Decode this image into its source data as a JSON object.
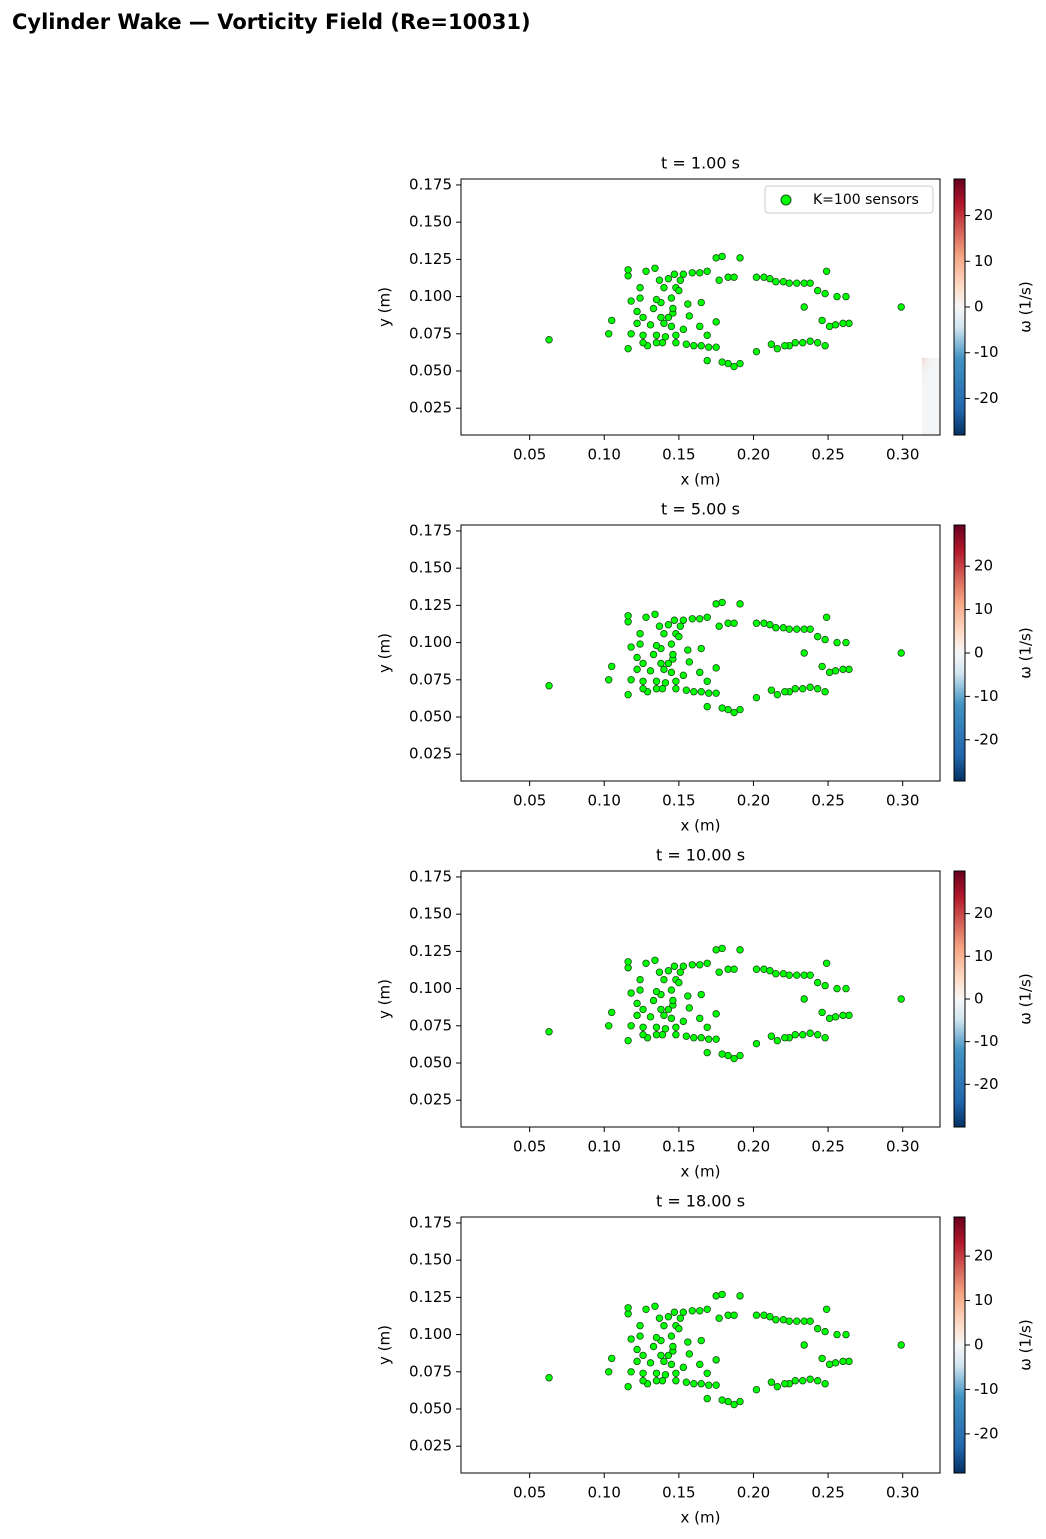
{
  "title": "Cylinder Wake — Vorticity Field (Re=10031)",
  "chart_data": [
    {
      "type": "heatmap",
      "title": "t = 1.00 s",
      "xlabel": "x (m)",
      "ylabel": "y (m)",
      "colorbar_label": "ω (1/s)",
      "cmap": "RdBu_r",
      "clim": [
        -28,
        28
      ],
      "cticks": [
        -20,
        -10,
        0,
        10,
        20
      ],
      "xlim": [
        0.004,
        0.325
      ],
      "ylim": [
        0.007,
        0.179
      ],
      "xticks": [
        0.05,
        {
          "value": 0.1,
          "label": "0.10"
        },
        0.15,
        {
          "value": 0.2,
          "label": "0.20"
        },
        0.25,
        {
          "value": 0.3,
          "label": "0.30"
        }
      ],
      "yticks": [
        0.025,
        {
          "value": 0.05,
          "label": "0.050"
        },
        0.075,
        {
          "value": 0.1,
          "label": "0.100"
        },
        0.125,
        {
          "value": 0.15,
          "label": "0.150"
        },
        0.175
      ],
      "legend": "upper right",
      "series": [
        {
          "name": "K=100 sensors",
          "color": "#00ff00",
          "x": [
            0.063,
            0.103,
            0.105,
            0.116,
            0.116,
            0.124,
            0.124,
            0.118,
            0.116,
            0.122,
            0.122,
            0.134,
            0.128,
            0.137,
            0.143,
            0.147,
            0.151,
            0.153,
            0.159,
            0.164,
            0.169,
            0.175,
            0.179,
            0.191,
            0.177,
            0.183,
            0.187,
            0.202,
            0.207,
            0.211,
            0.215,
            0.22,
            0.224,
            0.229,
            0.234,
            0.238,
            0.249,
            0.243,
            0.248,
            0.256,
            0.262,
            0.234,
            0.299,
            0.264,
            0.26,
            0.255,
            0.251,
            0.246,
            0.248,
            0.243,
            0.238,
            0.233,
            0.228,
            0.224,
            0.221,
            0.216,
            0.212,
            0.202,
            0.191,
            0.187,
            0.183,
            0.179,
            0.169,
            0.175,
            0.17,
            0.165,
            0.16,
            0.155,
            0.148,
            0.141,
            0.139,
            0.135,
            0.135,
            0.129,
            0.126,
            0.118,
            0.14,
            0.143,
            0.146,
            0.146,
            0.145,
            0.138,
            0.135,
            0.14,
            0.148,
            0.165,
            0.169,
            0.156,
            0.157,
            0.164,
            0.175,
            0.153,
            0.145,
            0.148,
            0.131,
            0.126,
            0.126,
            0.138,
            0.133,
            0.15
          ],
          "y": [
            0.071,
            0.075,
            0.084,
            0.114,
            0.118,
            0.106,
            0.099,
            0.097,
            0.065,
            0.082,
            0.09,
            0.119,
            0.117,
            0.111,
            0.112,
            0.115,
            0.111,
            0.115,
            0.116,
            0.116,
            0.117,
            0.126,
            0.127,
            0.126,
            0.111,
            0.113,
            0.113,
            0.113,
            0.113,
            0.112,
            0.11,
            0.11,
            0.109,
            0.109,
            0.109,
            0.109,
            0.117,
            0.104,
            0.102,
            0.1,
            0.1,
            0.093,
            0.093,
            0.082,
            0.082,
            0.081,
            0.08,
            0.084,
            0.067,
            0.069,
            0.07,
            0.069,
            0.069,
            0.067,
            0.067,
            0.065,
            0.068,
            0.063,
            0.055,
            0.053,
            0.055,
            0.056,
            0.057,
            0.066,
            0.066,
            0.067,
            0.067,
            0.068,
            0.069,
            0.073,
            0.069,
            0.074,
            0.069,
            0.067,
            0.074,
            0.075,
            0.082,
            0.086,
            0.089,
            0.092,
            0.099,
            0.096,
            0.098,
            0.106,
            0.106,
            0.096,
            0.074,
            0.095,
            0.087,
            0.08,
            0.083,
            0.078,
            0.08,
            0.074,
            0.081,
            0.086,
            0.069,
            0.086,
            0.092,
            0.104
          ]
        }
      ]
    },
    {
      "type": "heatmap",
      "title": "t = 5.00 s",
      "xlabel": "x (m)",
      "ylabel": "y (m)",
      "colorbar_label": "ω (1/s)",
      "cmap": "RdBu_r",
      "clim": [
        -29.5,
        29.5
      ],
      "cticks": [
        -20,
        -10,
        0,
        10,
        20
      ],
      "xlim": [
        0.004,
        0.325
      ],
      "ylim": [
        0.007,
        0.179
      ],
      "xticks": [
        0.05,
        {
          "value": 0.1,
          "label": "0.10"
        },
        0.15,
        {
          "value": 0.2,
          "label": "0.20"
        },
        0.25,
        {
          "value": 0.3,
          "label": "0.30"
        }
      ],
      "yticks": [
        0.025,
        {
          "value": 0.05,
          "label": "0.050"
        },
        0.075,
        {
          "value": 0.1,
          "label": "0.100"
        },
        0.125,
        {
          "value": 0.15,
          "label": "0.150"
        },
        0.175
      ],
      "series": [
        {
          "color": "#00ff00",
          "x": [
            0.063,
            0.103,
            0.105,
            0.116,
            0.116,
            0.124,
            0.124,
            0.118,
            0.116,
            0.122,
            0.122,
            0.134,
            0.128,
            0.137,
            0.143,
            0.147,
            0.151,
            0.153,
            0.159,
            0.164,
            0.169,
            0.175,
            0.179,
            0.191,
            0.177,
            0.183,
            0.187,
            0.202,
            0.207,
            0.211,
            0.215,
            0.22,
            0.224,
            0.229,
            0.234,
            0.238,
            0.249,
            0.243,
            0.248,
            0.256,
            0.262,
            0.234,
            0.299,
            0.264,
            0.26,
            0.255,
            0.251,
            0.246,
            0.248,
            0.243,
            0.238,
            0.233,
            0.228,
            0.224,
            0.221,
            0.216,
            0.212,
            0.202,
            0.191,
            0.187,
            0.183,
            0.179,
            0.169,
            0.175,
            0.17,
            0.165,
            0.16,
            0.155,
            0.148,
            0.141,
            0.139,
            0.135,
            0.135,
            0.129,
            0.126,
            0.118,
            0.14,
            0.143,
            0.146,
            0.146,
            0.145,
            0.138,
            0.135,
            0.14,
            0.148,
            0.165,
            0.169,
            0.156,
            0.157,
            0.164,
            0.175,
            0.153,
            0.145,
            0.148,
            0.131,
            0.126,
            0.126,
            0.138,
            0.133,
            0.15
          ],
          "y": [
            0.071,
            0.075,
            0.084,
            0.114,
            0.118,
            0.106,
            0.099,
            0.097,
            0.065,
            0.082,
            0.09,
            0.119,
            0.117,
            0.111,
            0.112,
            0.115,
            0.111,
            0.115,
            0.116,
            0.116,
            0.117,
            0.126,
            0.127,
            0.126,
            0.111,
            0.113,
            0.113,
            0.113,
            0.113,
            0.112,
            0.11,
            0.11,
            0.109,
            0.109,
            0.109,
            0.109,
            0.117,
            0.104,
            0.102,
            0.1,
            0.1,
            0.093,
            0.093,
            0.082,
            0.082,
            0.081,
            0.08,
            0.084,
            0.067,
            0.069,
            0.07,
            0.069,
            0.069,
            0.067,
            0.067,
            0.065,
            0.068,
            0.063,
            0.055,
            0.053,
            0.055,
            0.056,
            0.057,
            0.066,
            0.066,
            0.067,
            0.067,
            0.068,
            0.069,
            0.073,
            0.069,
            0.074,
            0.069,
            0.067,
            0.074,
            0.075,
            0.082,
            0.086,
            0.089,
            0.092,
            0.099,
            0.096,
            0.098,
            0.106,
            0.106,
            0.096,
            0.074,
            0.095,
            0.087,
            0.08,
            0.083,
            0.078,
            0.08,
            0.074,
            0.081,
            0.086,
            0.069,
            0.086,
            0.092,
            0.104
          ]
        }
      ]
    },
    {
      "type": "heatmap",
      "title": "t = 10.00 s",
      "xlabel": "x (m)",
      "ylabel": "y (m)",
      "colorbar_label": "ω (1/s)",
      "cmap": "RdBu_r",
      "clim": [
        -30,
        30
      ],
      "cticks": [
        -20,
        -10,
        0,
        10,
        20
      ],
      "xlim": [
        0.004,
        0.325
      ],
      "ylim": [
        0.007,
        0.179
      ],
      "xticks": [
        0.05,
        {
          "value": 0.1,
          "label": "0.10"
        },
        0.15,
        {
          "value": 0.2,
          "label": "0.20"
        },
        0.25,
        {
          "value": 0.3,
          "label": "0.30"
        }
      ],
      "yticks": [
        0.025,
        {
          "value": 0.05,
          "label": "0.050"
        },
        0.075,
        {
          "value": 0.1,
          "label": "0.100"
        },
        0.125,
        {
          "value": 0.15,
          "label": "0.150"
        },
        0.175
      ],
      "series": [
        {
          "color": "#00ff00",
          "x": [
            0.063,
            0.103,
            0.105,
            0.116,
            0.116,
            0.124,
            0.124,
            0.118,
            0.116,
            0.122,
            0.122,
            0.134,
            0.128,
            0.137,
            0.143,
            0.147,
            0.151,
            0.153,
            0.159,
            0.164,
            0.169,
            0.175,
            0.179,
            0.191,
            0.177,
            0.183,
            0.187,
            0.202,
            0.207,
            0.211,
            0.215,
            0.22,
            0.224,
            0.229,
            0.234,
            0.238,
            0.249,
            0.243,
            0.248,
            0.256,
            0.262,
            0.234,
            0.299,
            0.264,
            0.26,
            0.255,
            0.251,
            0.246,
            0.248,
            0.243,
            0.238,
            0.233,
            0.228,
            0.224,
            0.221,
            0.216,
            0.212,
            0.202,
            0.191,
            0.187,
            0.183,
            0.179,
            0.169,
            0.175,
            0.17,
            0.165,
            0.16,
            0.155,
            0.148,
            0.141,
            0.139,
            0.135,
            0.135,
            0.129,
            0.126,
            0.118,
            0.14,
            0.143,
            0.146,
            0.146,
            0.145,
            0.138,
            0.135,
            0.14,
            0.148,
            0.165,
            0.169,
            0.156,
            0.157,
            0.164,
            0.175,
            0.153,
            0.145,
            0.148,
            0.131,
            0.126,
            0.126,
            0.138,
            0.133,
            0.15
          ],
          "y": [
            0.071,
            0.075,
            0.084,
            0.114,
            0.118,
            0.106,
            0.099,
            0.097,
            0.065,
            0.082,
            0.09,
            0.119,
            0.117,
            0.111,
            0.112,
            0.115,
            0.111,
            0.115,
            0.116,
            0.116,
            0.117,
            0.126,
            0.127,
            0.126,
            0.111,
            0.113,
            0.113,
            0.113,
            0.113,
            0.112,
            0.11,
            0.11,
            0.109,
            0.109,
            0.109,
            0.109,
            0.117,
            0.104,
            0.102,
            0.1,
            0.1,
            0.093,
            0.093,
            0.082,
            0.082,
            0.081,
            0.08,
            0.084,
            0.067,
            0.069,
            0.07,
            0.069,
            0.069,
            0.067,
            0.067,
            0.065,
            0.068,
            0.063,
            0.055,
            0.053,
            0.055,
            0.056,
            0.057,
            0.066,
            0.066,
            0.067,
            0.067,
            0.068,
            0.069,
            0.073,
            0.069,
            0.074,
            0.069,
            0.067,
            0.074,
            0.075,
            0.082,
            0.086,
            0.089,
            0.092,
            0.099,
            0.096,
            0.098,
            0.106,
            0.106,
            0.096,
            0.074,
            0.095,
            0.087,
            0.08,
            0.083,
            0.078,
            0.08,
            0.074,
            0.081,
            0.086,
            0.069,
            0.086,
            0.092,
            0.104
          ]
        }
      ]
    },
    {
      "type": "heatmap",
      "title": "t = 18.00 s",
      "xlabel": "x (m)",
      "ylabel": "y (m)",
      "colorbar_label": "ω (1/s)",
      "cmap": "RdBu_r",
      "clim": [
        -28.8,
        28.8
      ],
      "cticks": [
        -20,
        -10,
        0,
        10,
        20
      ],
      "xlim": [
        0.004,
        0.325
      ],
      "ylim": [
        0.007,
        0.179
      ],
      "xticks": [
        0.05,
        {
          "value": 0.1,
          "label": "0.10"
        },
        0.15,
        {
          "value": 0.2,
          "label": "0.20"
        },
        0.25,
        {
          "value": 0.3,
          "label": "0.30"
        }
      ],
      "yticks": [
        0.025,
        {
          "value": 0.05,
          "label": "0.050"
        },
        0.075,
        {
          "value": 0.1,
          "label": "0.100"
        },
        0.125,
        {
          "value": 0.15,
          "label": "0.150"
        },
        0.175
      ],
      "series": [
        {
          "color": "#00ff00",
          "x": [
            0.063,
            0.103,
            0.105,
            0.116,
            0.116,
            0.124,
            0.124,
            0.118,
            0.116,
            0.122,
            0.122,
            0.134,
            0.128,
            0.137,
            0.143,
            0.147,
            0.151,
            0.153,
            0.159,
            0.164,
            0.169,
            0.175,
            0.179,
            0.191,
            0.177,
            0.183,
            0.187,
            0.202,
            0.207,
            0.211,
            0.215,
            0.22,
            0.224,
            0.229,
            0.234,
            0.238,
            0.249,
            0.243,
            0.248,
            0.256,
            0.262,
            0.234,
            0.299,
            0.264,
            0.26,
            0.255,
            0.251,
            0.246,
            0.248,
            0.243,
            0.238,
            0.233,
            0.228,
            0.224,
            0.221,
            0.216,
            0.212,
            0.202,
            0.191,
            0.187,
            0.183,
            0.179,
            0.169,
            0.175,
            0.17,
            0.165,
            0.16,
            0.155,
            0.148,
            0.141,
            0.139,
            0.135,
            0.135,
            0.129,
            0.126,
            0.118,
            0.14,
            0.143,
            0.146,
            0.146,
            0.145,
            0.138,
            0.135,
            0.14,
            0.148,
            0.165,
            0.169,
            0.156,
            0.157,
            0.164,
            0.175,
            0.153,
            0.145,
            0.148,
            0.131,
            0.126,
            0.126,
            0.138,
            0.133,
            0.15
          ],
          "y": [
            0.071,
            0.075,
            0.084,
            0.114,
            0.118,
            0.106,
            0.099,
            0.097,
            0.065,
            0.082,
            0.09,
            0.119,
            0.117,
            0.111,
            0.112,
            0.115,
            0.111,
            0.115,
            0.116,
            0.116,
            0.117,
            0.126,
            0.127,
            0.126,
            0.111,
            0.113,
            0.113,
            0.113,
            0.113,
            0.112,
            0.11,
            0.11,
            0.109,
            0.109,
            0.109,
            0.109,
            0.117,
            0.104,
            0.102,
            0.1,
            0.1,
            0.093,
            0.093,
            0.082,
            0.082,
            0.081,
            0.08,
            0.084,
            0.067,
            0.069,
            0.07,
            0.069,
            0.069,
            0.067,
            0.067,
            0.065,
            0.068,
            0.063,
            0.055,
            0.053,
            0.055,
            0.056,
            0.057,
            0.066,
            0.066,
            0.067,
            0.067,
            0.068,
            0.069,
            0.073,
            0.069,
            0.074,
            0.069,
            0.067,
            0.074,
            0.075,
            0.082,
            0.086,
            0.089,
            0.092,
            0.099,
            0.096,
            0.098,
            0.106,
            0.106,
            0.096,
            0.074,
            0.095,
            0.087,
            0.08,
            0.083,
            0.078,
            0.08,
            0.074,
            0.081,
            0.086,
            0.069,
            0.086,
            0.092,
            0.104
          ]
        }
      ]
    }
  ]
}
